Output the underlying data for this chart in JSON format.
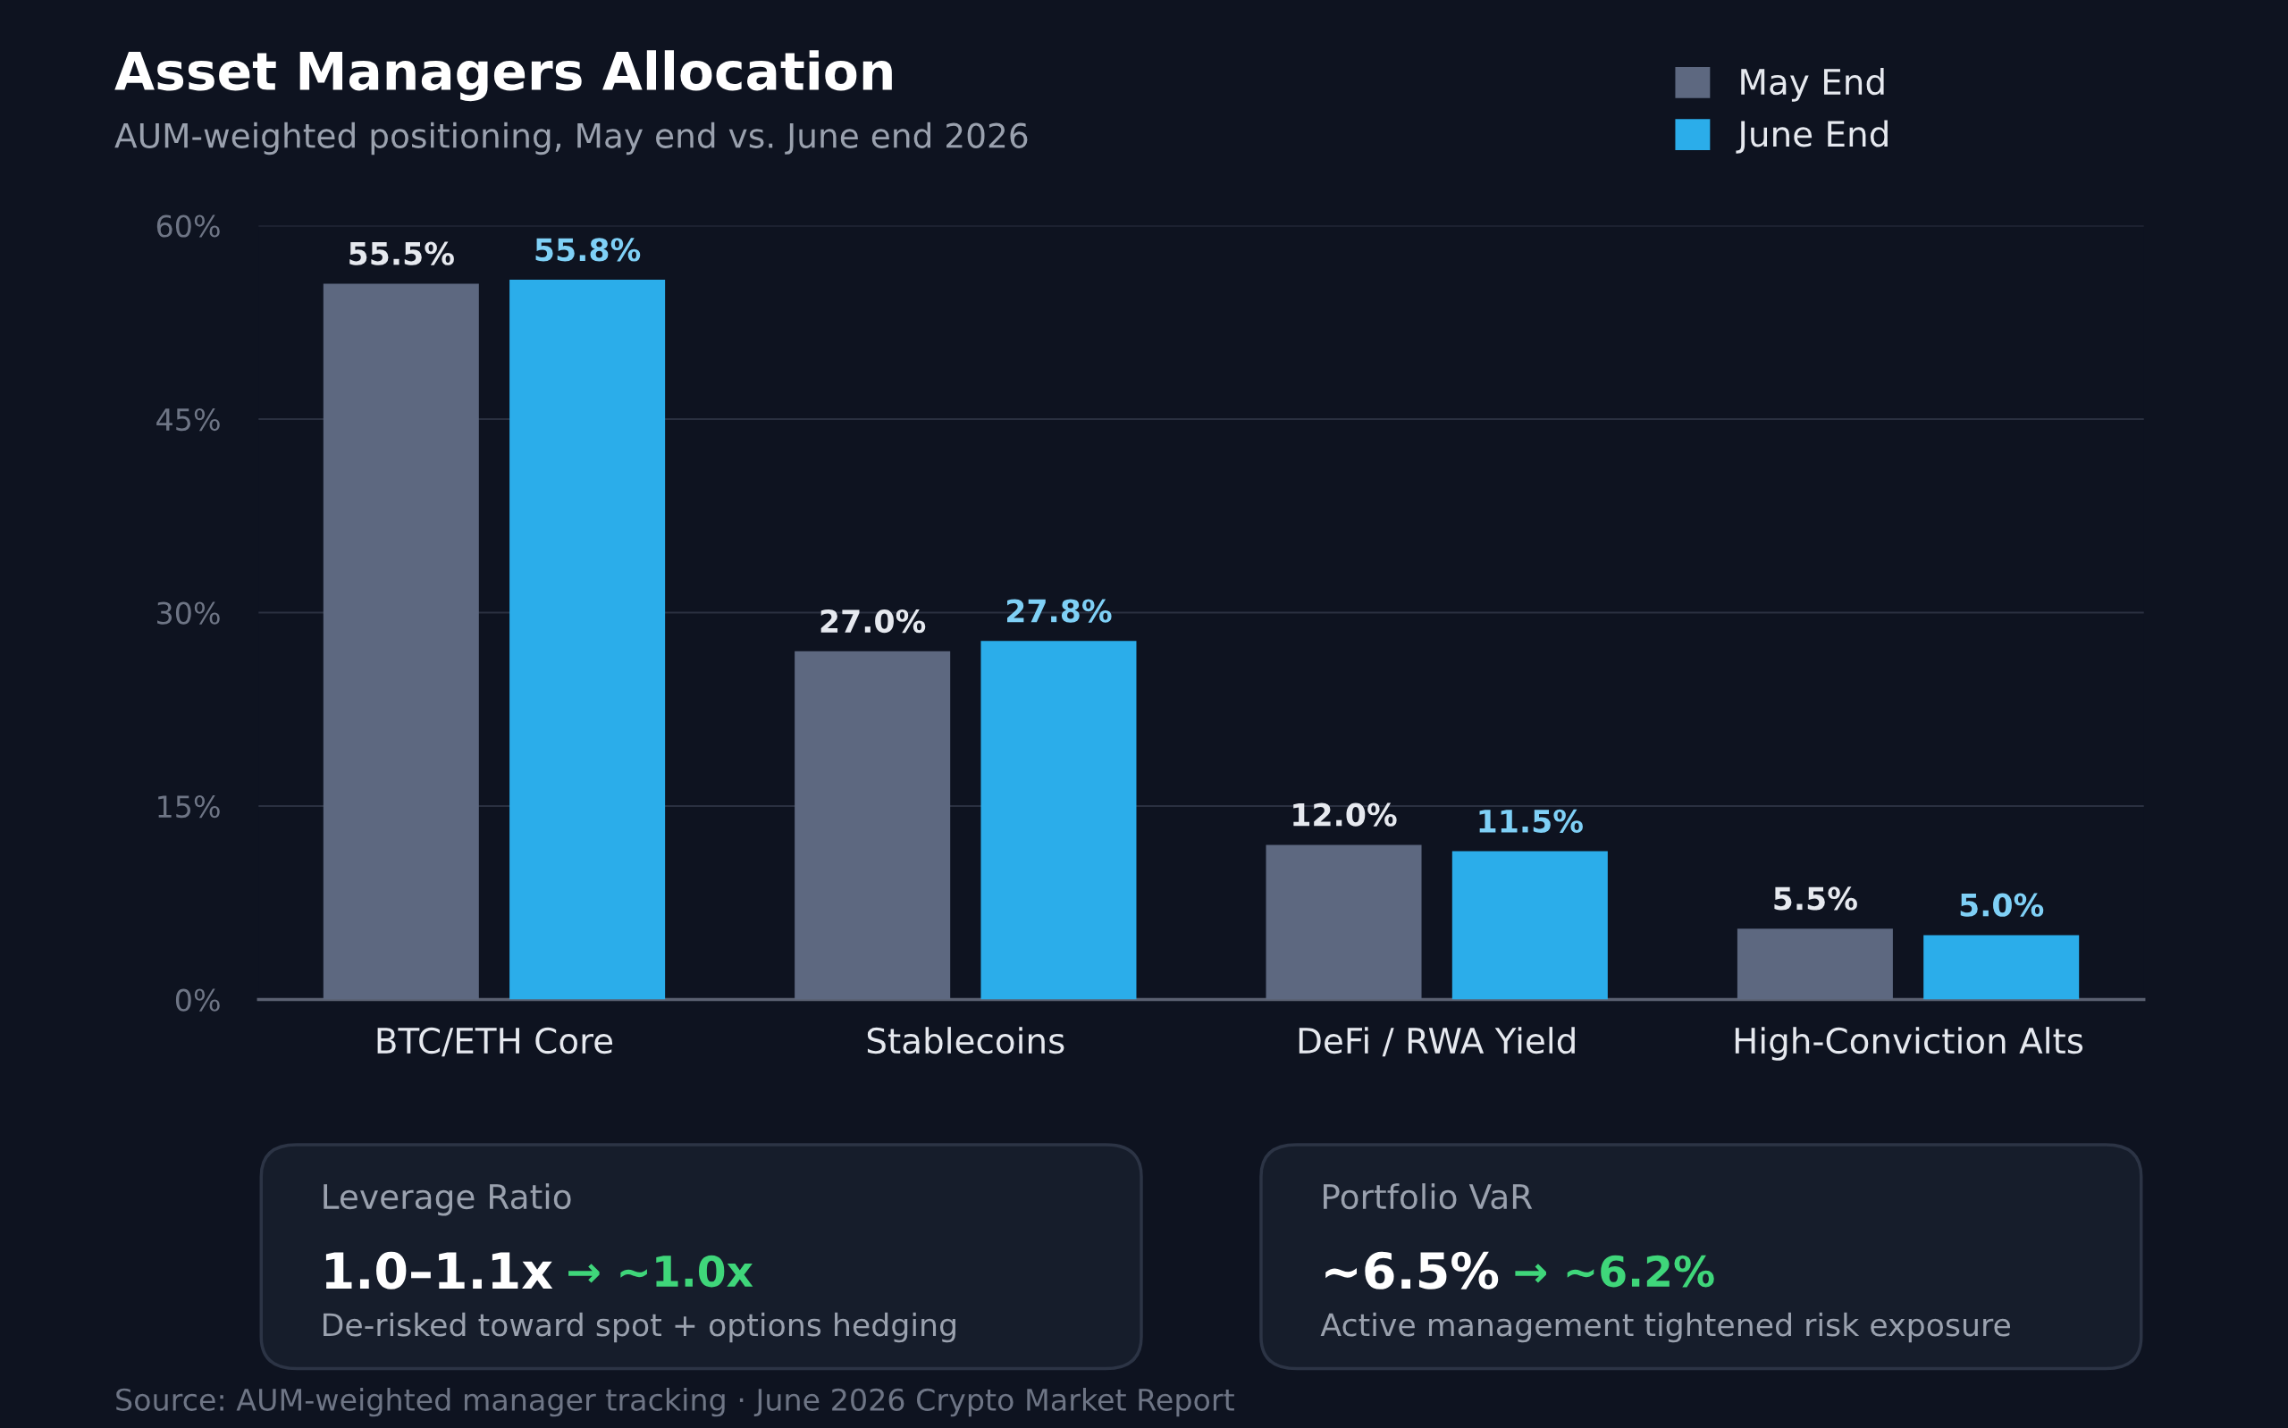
{
  "chart_data": [
    {
      "type": "bar",
      "title": "Asset Managers Allocation",
      "subtitle": "AUM-weighted positioning, May end vs. June end 2026",
      "categories": [
        "BTC/ETH Core",
        "Stablecoins",
        "DeFi / RWA Yield",
        "High-Conviction Alts"
      ],
      "series": [
        {
          "name": "May End",
          "color": "#5d6880",
          "values": [
            55.5,
            27.0,
            12.0,
            5.5
          ],
          "value_labels": [
            "55.5%",
            "27.0%",
            "12.0%",
            "5.5%"
          ]
        },
        {
          "name": "June End",
          "color": "#2badea",
          "values": [
            55.8,
            27.8,
            11.5,
            5.0
          ],
          "value_labels": [
            "55.8%",
            "27.8%",
            "11.5%",
            "5.0%"
          ]
        }
      ],
      "ylim": [
        0,
        60
      ],
      "yticks": [
        {
          "value": 0,
          "label": "0%"
        },
        {
          "value": 15,
          "label": "15%"
        },
        {
          "value": 30,
          "label": "30%"
        },
        {
          "value": 45,
          "label": "45%"
        },
        {
          "value": 60,
          "label": "60%"
        }
      ],
      "grid": "y",
      "legend": "top right",
      "annotations": [
        "Source: AUM-weighted manager tracking · June 2026 Crypto Market Report"
      ]
    },
    {
      "type": "other",
      "title": "Leverage Ratio",
      "annotations": [
        "1.0–1.1x",
        "→ ~1.0x",
        "De-risked toward spot + options hedging"
      ]
    },
    {
      "type": "other",
      "title": "Portfolio VaR",
      "annotations": [
        "~6.5%",
        "→ ~6.2%",
        "Active management tightened risk exposure"
      ]
    }
  ]
}
